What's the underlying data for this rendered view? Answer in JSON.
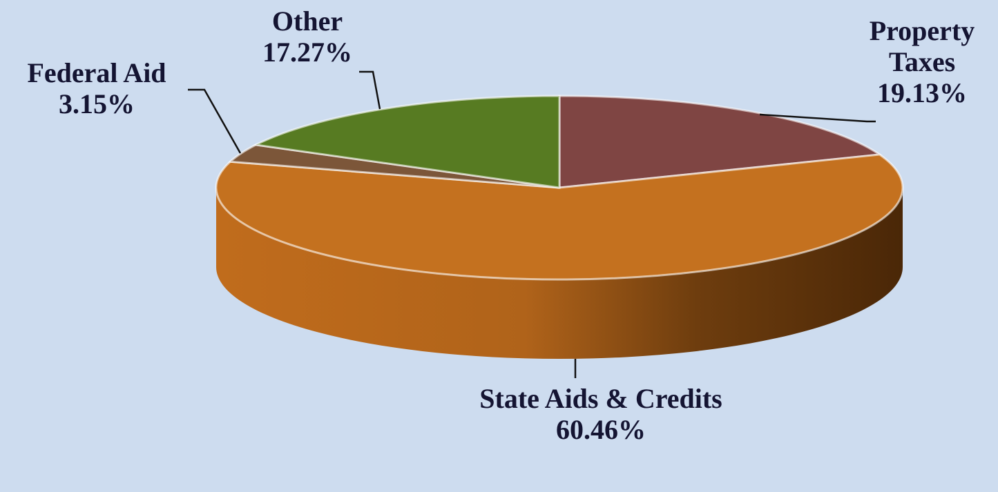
{
  "chart_data": {
    "type": "pie",
    "categories": [
      "Property Taxes",
      "State Aids & Credits",
      "Federal Aid",
      "Other"
    ],
    "values": [
      19.13,
      60.46,
      3.15,
      17.27
    ],
    "value_labels": [
      "19.13%",
      "60.46%",
      "3.15%",
      "17.27%"
    ],
    "colors": [
      "#7f4543",
      "#c4711f",
      "#7c5639",
      "#577b22"
    ],
    "start_angle": 90,
    "direction": "clockwise",
    "three_d": true
  }
}
